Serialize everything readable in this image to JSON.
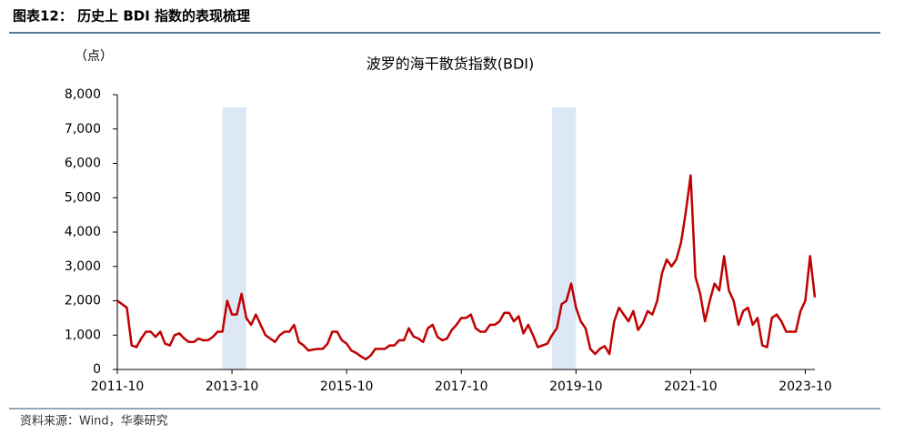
{
  "page_title": "图表12：  历史上 BDI 指数的表现梳理",
  "source": "资料来源：Wind，华泰研究",
  "chart_data": {
    "type": "line",
    "title": "波罗的海干散货指数(BDI)",
    "y_label": "（点）",
    "color": "#c00000",
    "highlight_color": "#dce8f6",
    "x": [
      "2011-10",
      "2011-11",
      "2011-12",
      "2012-01",
      "2012-02",
      "2012-03",
      "2012-04",
      "2012-05",
      "2012-06",
      "2012-07",
      "2012-08",
      "2012-09",
      "2012-10",
      "2012-11",
      "2012-12",
      "2013-01",
      "2013-02",
      "2013-03",
      "2013-04",
      "2013-05",
      "2013-06",
      "2013-07",
      "2013-08",
      "2013-09",
      "2013-10",
      "2013-11",
      "2013-12",
      "2014-01",
      "2014-02",
      "2014-03",
      "2014-04",
      "2014-05",
      "2014-06",
      "2014-07",
      "2014-08",
      "2014-09",
      "2014-10",
      "2014-11",
      "2014-12",
      "2015-01",
      "2015-02",
      "2015-03",
      "2015-04",
      "2015-05",
      "2015-06",
      "2015-07",
      "2015-08",
      "2015-09",
      "2015-10",
      "2015-11",
      "2015-12",
      "2016-01",
      "2016-02",
      "2016-03",
      "2016-04",
      "2016-05",
      "2016-06",
      "2016-07",
      "2016-08",
      "2016-09",
      "2016-10",
      "2016-11",
      "2016-12",
      "2017-01",
      "2017-02",
      "2017-03",
      "2017-04",
      "2017-05",
      "2017-06",
      "2017-07",
      "2017-08",
      "2017-09",
      "2017-10",
      "2017-11",
      "2017-12",
      "2018-01",
      "2018-02",
      "2018-03",
      "2018-04",
      "2018-05",
      "2018-06",
      "2018-07",
      "2018-08",
      "2018-09",
      "2018-10",
      "2018-11",
      "2018-12",
      "2019-01",
      "2019-02",
      "2019-03",
      "2019-04",
      "2019-05",
      "2019-06",
      "2019-07",
      "2019-08",
      "2019-09",
      "2019-10",
      "2019-11",
      "2019-12",
      "2020-01",
      "2020-02",
      "2020-03",
      "2020-04",
      "2020-05",
      "2020-06",
      "2020-07",
      "2020-08",
      "2020-09",
      "2020-10",
      "2020-11",
      "2020-12",
      "2021-01",
      "2021-02",
      "2021-03",
      "2021-04",
      "2021-05",
      "2021-06",
      "2021-07",
      "2021-08",
      "2021-09",
      "2021-10",
      "2021-11",
      "2021-12",
      "2022-01",
      "2022-02",
      "2022-03",
      "2022-04",
      "2022-05",
      "2022-06",
      "2022-07",
      "2022-08",
      "2022-09",
      "2022-10",
      "2022-11",
      "2022-12",
      "2023-01",
      "2023-02",
      "2023-03",
      "2023-04",
      "2023-05",
      "2023-06",
      "2023-07",
      "2023-08",
      "2023-09",
      "2023-10",
      "2023-11",
      "2023-12"
    ],
    "values": [
      2000,
      1900,
      1800,
      700,
      650,
      900,
      1100,
      1100,
      950,
      1100,
      750,
      700,
      1000,
      1050,
      900,
      800,
      800,
      900,
      850,
      850,
      950,
      1100,
      1100,
      2000,
      1600,
      1600,
      2200,
      1500,
      1300,
      1600,
      1300,
      1000,
      900,
      800,
      1000,
      1100,
      1100,
      1300,
      800,
      700,
      550,
      580,
      600,
      600,
      750,
      1100,
      1100,
      850,
      750,
      550,
      480,
      380,
      300,
      400,
      600,
      600,
      600,
      700,
      700,
      850,
      850,
      1200,
      960,
      900,
      800,
      1200,
      1300,
      950,
      850,
      900,
      1150,
      1300,
      1500,
      1500,
      1600,
      1200,
      1100,
      1100,
      1300,
      1300,
      1400,
      1650,
      1650,
      1400,
      1550,
      1050,
      1300,
      1000,
      650,
      700,
      750,
      1000,
      1200,
      1900,
      2000,
      2500,
      1800,
      1400,
      1200,
      600,
      450,
      600,
      680,
      450,
      1400,
      1800,
      1600,
      1400,
      1700,
      1150,
      1350,
      1700,
      1600,
      2000,
      2800,
      3200,
      3000,
      3200,
      3700,
      4600,
      5650,
      2700,
      2200,
      1400,
      2000,
      2500,
      2300,
      3300,
      2300,
      2000,
      1300,
      1700,
      1800,
      1300,
      1500,
      700,
      650,
      1500,
      1600,
      1400,
      1100,
      1100,
      1100,
      1700,
      2000,
      3300,
      2100
    ],
    "xlim": [
      "2011-10",
      "2023-12"
    ],
    "xticks": [
      "2011-10",
      "2013-10",
      "2015-10",
      "2017-10",
      "2019-10",
      "2021-10",
      "2023-10"
    ],
    "ylim": [
      0,
      8000
    ],
    "yticks": [
      0,
      {
        "value": 1000,
        "label": "1,000"
      },
      {
        "value": 2000,
        "label": "2,000"
      },
      {
        "value": 3000,
        "label": "3,000"
      },
      {
        "value": 4000,
        "label": "4,000"
      },
      {
        "value": 5000,
        "label": "5,000"
      },
      {
        "value": 6000,
        "label": "6,000"
      },
      {
        "value": 7000,
        "label": "7,000"
      },
      {
        "value": 8000,
        "label": "8,000"
      }
    ],
    "highlights": [
      [
        "2013-08",
        "2014-01"
      ],
      [
        "2019-05",
        "2019-10"
      ]
    ]
  }
}
